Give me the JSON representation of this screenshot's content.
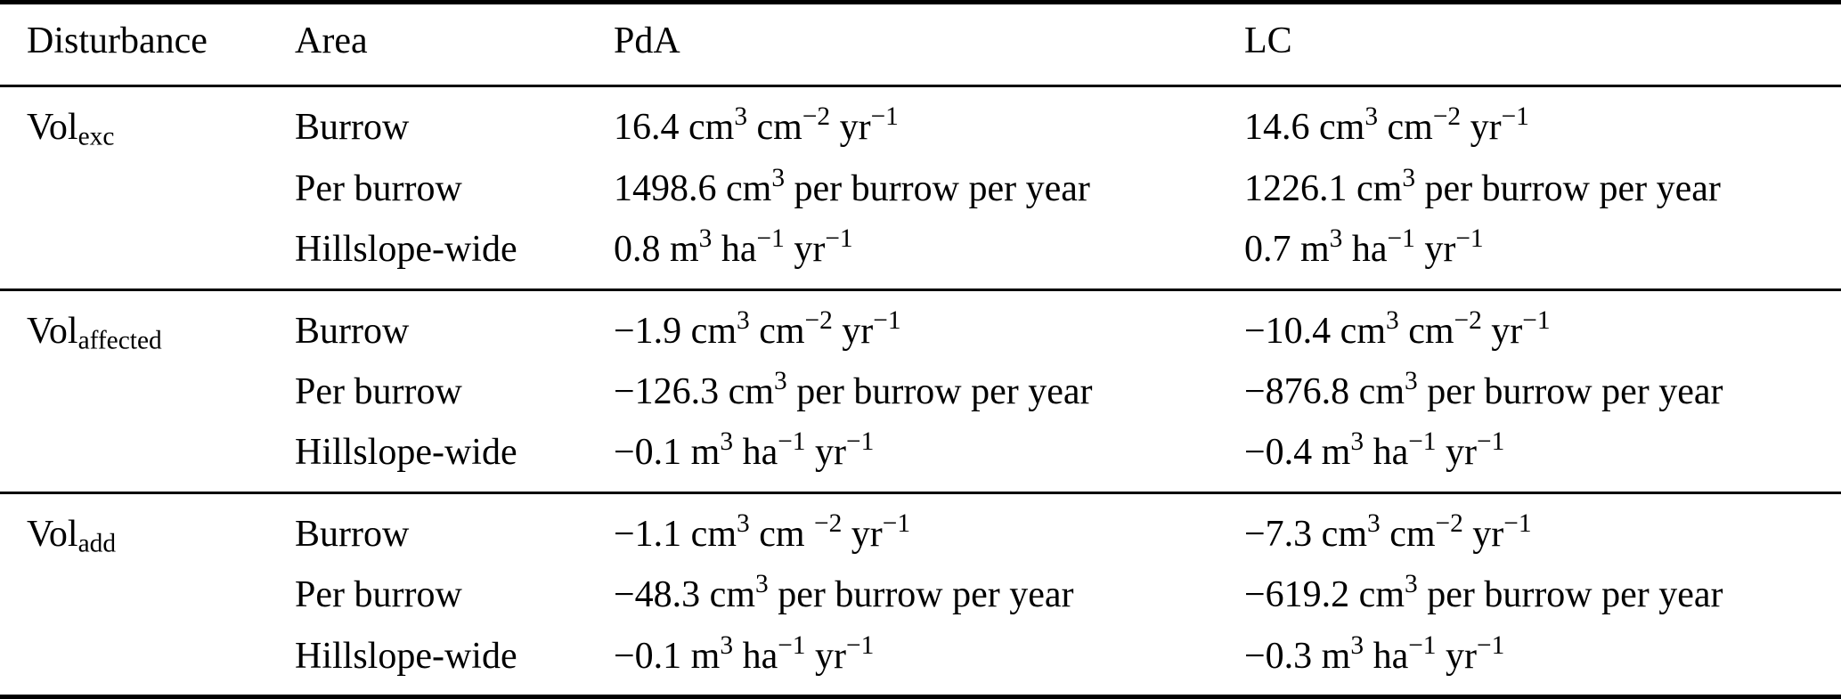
{
  "table": {
    "headers": {
      "disturbance": "Disturbance",
      "area": "Area",
      "pda": "PdA",
      "lc": "LC"
    },
    "groups": [
      {
        "disturbance": "Vol_{exc}",
        "rows": [
          {
            "area": "Burrow",
            "pda": "16.4 cm^{3} cm^{−2} yr^{−1}",
            "lc": "14.6 cm^{3} cm^{−2} yr^{−1}"
          },
          {
            "area": "Per burrow",
            "pda": "1498.6 cm^{3} per burrow per year",
            "lc": "1226.1 cm^{3} per burrow per year"
          },
          {
            "area": "Hillslope-wide",
            "pda": "0.8 m^{3} ha^{−1} yr^{−1}",
            "lc": "0.7 m^{3} ha^{−1} yr^{−1}"
          }
        ]
      },
      {
        "disturbance": "Vol_{affected}",
        "rows": [
          {
            "area": "Burrow",
            "pda": "−1.9 cm^{3} cm^{−2} yr^{−1}",
            "lc": "−10.4 cm^{3} cm^{−2} yr^{−1}"
          },
          {
            "area": "Per burrow",
            "pda": "−126.3 cm^{3} per burrow per year",
            "lc": "−876.8 cm^{3} per burrow per year"
          },
          {
            "area": "Hillslope-wide",
            "pda": "−0.1 m^{3} ha^{−1} yr^{−1}",
            "lc": "−0.4 m^{3} ha^{−1} yr^{−1}"
          }
        ]
      },
      {
        "disturbance": "Vol_{add}",
        "rows": [
          {
            "area": "Burrow",
            "pda": "−1.1 cm^{3} cm ^{−2} yr^{−1}",
            "lc": "−7.3 cm^{3} cm^{−2} yr^{−1}"
          },
          {
            "area": "Per burrow",
            "pda": "−48.3 cm^{3} per burrow per year",
            "lc": "−619.2 cm^{3} per burrow per year"
          },
          {
            "area": "Hillslope-wide",
            "pda": "−0.1 m^{3} ha^{−1} yr^{−1}",
            "lc": "−0.3 m^{3} ha^{−1} yr^{−1}"
          }
        ]
      }
    ]
  }
}
